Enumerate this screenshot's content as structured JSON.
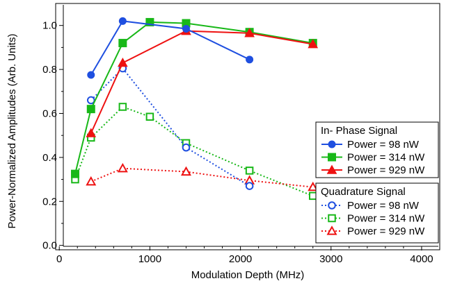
{
  "chart_data": {
    "type": "line",
    "xlabel": "Modulation Depth (MHz)",
    "ylabel": "Power-Normalized Amplitudes (Arb. Units)",
    "xlim": [
      -40,
      4200
    ],
    "ylim": [
      -0.02,
      1.1
    ],
    "xticks": [
      0,
      1000,
      2000,
      3000,
      4000
    ],
    "xtick_labels": [
      "0",
      "1000",
      "2000",
      "3000",
      "4000"
    ],
    "yticks": [
      0.0,
      0.2,
      0.4,
      0.6,
      0.8,
      1.0
    ],
    "ytick_labels": [
      "0.0",
      "0.2",
      "0.4",
      "0.6",
      "0.8",
      "1.0"
    ],
    "grid": false,
    "legend_placement": "right",
    "legend_groups": [
      {
        "title": "In- Phase Signal",
        "entries": [
          {
            "label": "Power = 98 nW",
            "color": "#1F4FE0",
            "marker": "circle",
            "filled": true,
            "dash": "solid"
          },
          {
            "label": "Power = 314 nW",
            "color": "#18B818",
            "marker": "square",
            "filled": true,
            "dash": "solid"
          },
          {
            "label": "Power = 929 nW",
            "color": "#EE1111",
            "marker": "triangle",
            "filled": true,
            "dash": "solid"
          }
        ]
      },
      {
        "title": "Quadrature Signal",
        "entries": [
          {
            "label": "Power = 98 nW",
            "color": "#1F4FE0",
            "marker": "circle",
            "filled": false,
            "dash": "dotted"
          },
          {
            "label": "Power = 314 nW",
            "color": "#18B818",
            "marker": "square",
            "filled": false,
            "dash": "dotted"
          },
          {
            "label": "Power = 929 nW",
            "color": "#EE1111",
            "marker": "triangle",
            "filled": false,
            "dash": "dotted"
          }
        ]
      }
    ],
    "series": [
      {
        "group": "in-phase",
        "power": "98 nW",
        "color": "#1F4FE0",
        "marker": "circle",
        "filled": true,
        "dash": "solid",
        "x": [
          350,
          700,
          1400,
          2100
        ],
        "y": [
          0.775,
          1.02,
          0.985,
          0.845
        ]
      },
      {
        "group": "in-phase",
        "power": "314 nW",
        "color": "#18B818",
        "marker": "square",
        "filled": true,
        "dash": "solid",
        "x": [
          175,
          350,
          700,
          1000,
          1400,
          2100,
          2800
        ],
        "y": [
          0.325,
          0.62,
          0.92,
          1.015,
          1.01,
          0.97,
          0.92
        ]
      },
      {
        "group": "in-phase",
        "power": "929 nW",
        "color": "#EE1111",
        "marker": "triangle",
        "filled": true,
        "dash": "solid",
        "x": [
          350,
          700,
          1400,
          2100,
          2800
        ],
        "y": [
          0.51,
          0.83,
          0.975,
          0.965,
          0.915
        ]
      },
      {
        "group": "quadrature",
        "power": "98 nW",
        "color": "#1F4FE0",
        "marker": "circle",
        "filled": false,
        "dash": "dotted",
        "x": [
          350,
          700,
          1400,
          2100
        ],
        "y": [
          0.66,
          0.805,
          0.445,
          0.27
        ]
      },
      {
        "group": "quadrature",
        "power": "314 nW",
        "color": "#18B818",
        "marker": "square",
        "filled": false,
        "dash": "dotted",
        "x": [
          175,
          350,
          700,
          1000,
          1400,
          2100,
          2800
        ],
        "y": [
          0.3,
          0.49,
          0.63,
          0.585,
          0.465,
          0.34,
          0.225
        ]
      },
      {
        "group": "quadrature",
        "power": "929 nW",
        "color": "#EE1111",
        "marker": "triangle",
        "filled": false,
        "dash": "dotted",
        "x": [
          350,
          700,
          1400,
          2100,
          2800
        ],
        "y": [
          0.29,
          0.35,
          0.335,
          0.295,
          0.265
        ]
      }
    ]
  }
}
